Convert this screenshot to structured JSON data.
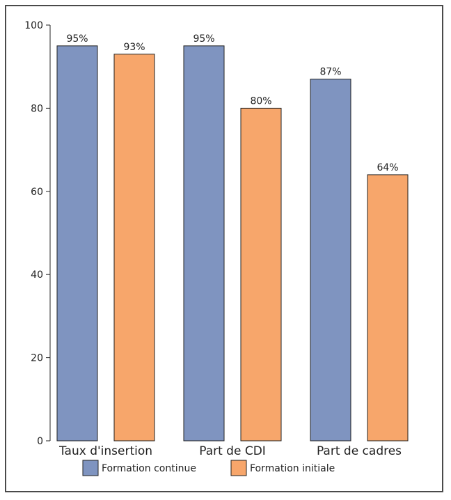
{
  "chart_data": {
    "type": "bar",
    "title": "",
    "xlabel": "",
    "ylabel": "",
    "ylim": [
      0,
      100
    ],
    "yticks": [
      0,
      20,
      40,
      60,
      80,
      100
    ],
    "categories": [
      "Taux d'insertion",
      "Part de CDI",
      "Part de cadres"
    ],
    "series": [
      {
        "name": "Formation continue",
        "values": [
          95,
          95,
          87
        ],
        "labels": [
          "95%",
          "95%",
          "87%"
        ],
        "color": "#7f94c0"
      },
      {
        "name": "Formation initiale",
        "values": [
          93,
          80,
          64
        ],
        "labels": [
          "93%",
          "80%",
          "64%"
        ],
        "color": "#f7a66b"
      }
    ],
    "grid": false,
    "legend_position": "bottom"
  }
}
